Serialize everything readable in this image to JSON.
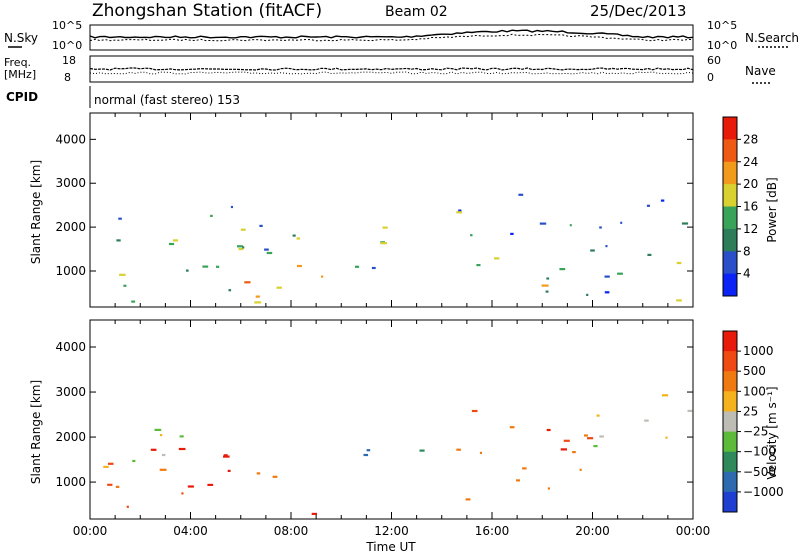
{
  "header": {
    "station": "Zhongshan Station (fitACF)",
    "beam": "Beam 02",
    "date": "25/Dec/2013"
  },
  "top_panels": {
    "nsky_label": "N.Sky",
    "nsky_ticks": [
      "10^5",
      "10^0"
    ],
    "nsearch_label": "N.Search",
    "nsearch_ticks": [
      "10^5",
      "10^0"
    ],
    "freq_label_1": "Freq.",
    "freq_label_2": "[MHz]",
    "freq_ticks": [
      "18",
      "8"
    ],
    "nave_label": "Nave",
    "nave_ticks": [
      "60",
      "0"
    ],
    "cpid_label": "CPID",
    "cpid_text": "normal (fast stereo) 153"
  },
  "chart_data": [
    {
      "type": "heatmap",
      "title": "",
      "ylabel": "Slant Range [km]",
      "xlabel": "",
      "ylim": [
        180,
        4600
      ],
      "yticks": [
        "1000",
        "2000",
        "3000",
        "4000"
      ],
      "colorbar": {
        "label": "Power [dB]",
        "range": [
          0,
          30
        ],
        "ticks": [
          "28",
          "24",
          "20",
          "16",
          "12",
          "8",
          "4"
        ],
        "colors": [
          "#0b24f5",
          "#2b4fc9",
          "#2e7d5a",
          "#3aa35a",
          "#d8d130",
          "#f29a1c",
          "#ee5a14",
          "#e81a0a"
        ]
      },
      "regions": [
        {
          "t0": 0.2,
          "t1": 9.5,
          "r0": 200,
          "r1": 2600,
          "intensity": 0.45
        },
        {
          "t0": 6.0,
          "t1": 9.0,
          "r0": 200,
          "r1": 1200,
          "intensity": 0.85
        },
        {
          "t0": 10.3,
          "t1": 13.2,
          "r0": 600,
          "r1": 2300,
          "intensity": 0.5
        },
        {
          "t0": 14.5,
          "t1": 20.0,
          "r0": 300,
          "r1": 2800,
          "intensity": 0.45
        },
        {
          "t0": 20.0,
          "t1": 24.0,
          "r0": 300,
          "r1": 3000,
          "intensity": 0.3
        }
      ]
    },
    {
      "type": "heatmap",
      "title": "",
      "ylabel": "Slant Range [km]",
      "xlabel": "Time UT",
      "ylim": [
        180,
        4600
      ],
      "yticks": [
        "1000",
        "2000",
        "3000",
        "4000"
      ],
      "xticks": [
        "00:00",
        "04:00",
        "08:00",
        "12:00",
        "16:00",
        "20:00",
        "00:00"
      ],
      "xrange_hours": [
        0,
        24
      ],
      "colorbar": {
        "label": "Velocity [m s⁻¹]",
        "ticks": [
          "1000",
          "500",
          "100",
          "25",
          "−25",
          "−100",
          "−500",
          "−1000"
        ],
        "colors": [
          "#1f3fd0",
          "#2e6ab0",
          "#2e8a5a",
          "#5dbb3a",
          "#bdbdb5",
          "#f5b21c",
          "#f07a12",
          "#ee4a12",
          "#e81a0a"
        ]
      },
      "regions": [
        {
          "t0": 0.2,
          "t1": 9.5,
          "r0": 300,
          "r1": 1800,
          "intensity": -0.4
        },
        {
          "t0": 0.2,
          "t1": 4.0,
          "r0": 1200,
          "r1": 2700,
          "intensity": 0.0
        },
        {
          "t0": 10.3,
          "t1": 13.2,
          "r0": 1600,
          "r1": 2400,
          "intensity": 0.3
        },
        {
          "t0": 14.5,
          "t1": 20.0,
          "r0": 400,
          "r1": 2800,
          "intensity": -0.35
        },
        {
          "t0": 20.0,
          "t1": 24.0,
          "r0": 1500,
          "r1": 3000,
          "intensity": 0.0
        }
      ]
    }
  ]
}
